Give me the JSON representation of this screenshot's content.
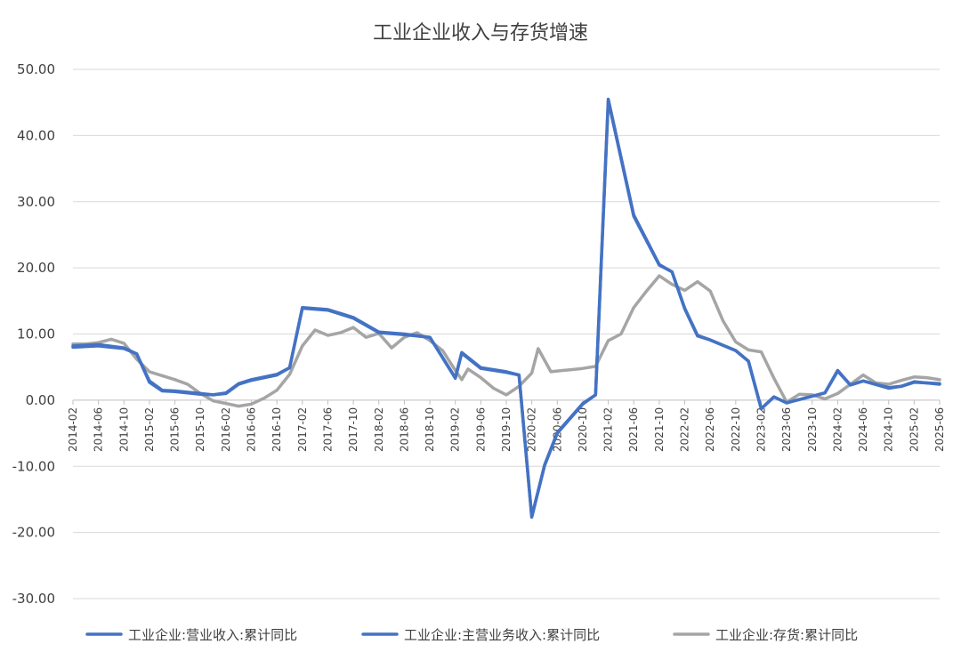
{
  "chart_data": {
    "type": "line",
    "title": "工业企业收入与存货增速",
    "xlabel": "",
    "ylabel": "",
    "ylim": [
      -30,
      50
    ],
    "yticks": [
      "50.00",
      "40.00",
      "30.00",
      "20.00",
      "10.00",
      "0.00",
      "-10.00",
      "-20.00",
      "-30.00"
    ],
    "grid": true,
    "legend_position": "bottom",
    "xtick_labels": [
      "2014-02",
      "2014-06",
      "2014-10",
      "2015-02",
      "2015-06",
      "2015-10",
      "2016-02",
      "2016-06",
      "2016-10",
      "2017-02",
      "2017-06",
      "2017-10",
      "2018-02",
      "2018-06",
      "2018-10",
      "2019-02",
      "2019-06",
      "2019-10",
      "2020-02",
      "2020-06",
      "2020-10",
      "2021-02",
      "2021-06",
      "2021-10",
      "2022-02",
      "2022-06",
      "2022-10",
      "2023-02",
      "2023-06",
      "2023-10",
      "2024-02",
      "2024-06",
      "2024-10",
      "2025-02",
      "2025-06"
    ],
    "series": [
      {
        "name": "工业企业:营业收入:累计同比",
        "color": "#4472c4",
        "points": [
          [
            "2014-02",
            8.0
          ],
          [
            "2014-06",
            8.2
          ],
          [
            "2014-10",
            7.8
          ],
          [
            "2014-12",
            7.0
          ],
          [
            "2015-02",
            2.7
          ],
          [
            "2015-04",
            1.4
          ],
          [
            "2015-06",
            1.3
          ],
          [
            "2015-10",
            0.9
          ],
          [
            "2015-12",
            0.8
          ],
          [
            "2016-02",
            1.0
          ],
          [
            "2016-04",
            2.4
          ],
          [
            "2016-06",
            3.0
          ],
          [
            "2016-10",
            3.8
          ],
          [
            "2016-12",
            4.9
          ],
          [
            "2017-02",
            13.9
          ],
          [
            "2017-06",
            13.6
          ],
          [
            "2017-10",
            12.4
          ],
          [
            "2018-02",
            10.2
          ],
          [
            "2018-06",
            9.9
          ],
          [
            "2018-10",
            9.5
          ],
          [
            "2019-02",
            3.3
          ],
          [
            "2019-03",
            7.1
          ],
          [
            "2019-06",
            4.8
          ],
          [
            "2019-10",
            4.2
          ],
          [
            "2019-12",
            3.8
          ],
          [
            "2020-02",
            -17.7
          ],
          [
            "2020-04",
            -9.9
          ],
          [
            "2020-06",
            -5.0
          ],
          [
            "2020-10",
            -0.6
          ],
          [
            "2020-12",
            0.8
          ],
          [
            "2021-02",
            45.5
          ],
          [
            "2021-06",
            28.0
          ],
          [
            "2021-10",
            20.5
          ],
          [
            "2021-12",
            19.4
          ],
          [
            "2022-02",
            13.9
          ],
          [
            "2022-04",
            9.8
          ],
          [
            "2022-06",
            9.1
          ],
          [
            "2022-10",
            7.5
          ],
          [
            "2022-12",
            5.9
          ],
          [
            "2023-02",
            -1.3
          ],
          [
            "2023-04",
            0.5
          ],
          [
            "2023-06",
            -0.4
          ],
          [
            "2023-10",
            0.6
          ],
          [
            "2023-12",
            1.1
          ],
          [
            "2024-02",
            4.5
          ],
          [
            "2024-04",
            2.3
          ],
          [
            "2024-06",
            2.9
          ],
          [
            "2024-10",
            1.8
          ],
          [
            "2024-12",
            2.1
          ],
          [
            "2025-02",
            2.8
          ],
          [
            "2025-06",
            2.4
          ]
        ]
      },
      {
        "name": "工业企业:主营业务收入:累计同比",
        "color": "#4472c4",
        "points": [
          [
            "2014-02",
            8.2
          ],
          [
            "2014-06",
            8.4
          ],
          [
            "2014-10",
            7.9
          ],
          [
            "2014-12",
            7.0
          ],
          [
            "2015-02",
            2.9
          ],
          [
            "2015-04",
            1.5
          ],
          [
            "2015-06",
            1.4
          ],
          [
            "2015-10",
            1.0
          ],
          [
            "2015-12",
            0.8
          ],
          [
            "2016-02",
            1.1
          ],
          [
            "2016-04",
            2.5
          ],
          [
            "2016-06",
            3.1
          ],
          [
            "2016-10",
            3.9
          ],
          [
            "2016-12",
            4.9
          ],
          [
            "2017-02",
            14.0
          ],
          [
            "2017-06",
            13.7
          ],
          [
            "2017-10",
            12.5
          ],
          [
            "2018-02",
            10.3
          ],
          [
            "2018-06",
            10.0
          ],
          [
            "2018-10",
            9.5
          ],
          [
            "2019-02",
            3.4
          ],
          [
            "2019-03",
            7.2
          ],
          [
            "2019-06",
            4.9
          ],
          [
            "2019-10",
            4.3
          ],
          [
            "2019-12",
            3.8
          ],
          [
            "2020-02",
            -17.6
          ],
          [
            "2020-04",
            -9.8
          ],
          [
            "2020-06",
            -4.9
          ],
          [
            "2020-10",
            -0.5
          ],
          [
            "2020-12",
            0.8
          ],
          [
            "2021-02",
            45.3
          ],
          [
            "2021-06",
            27.8
          ],
          [
            "2021-10",
            20.4
          ],
          [
            "2021-12",
            19.4
          ],
          [
            "2022-02",
            13.8
          ],
          [
            "2022-04",
            9.7
          ],
          [
            "2022-06",
            9.1
          ],
          [
            "2022-10",
            7.5
          ],
          [
            "2022-12",
            5.9
          ],
          [
            "2023-02",
            -1.3
          ],
          [
            "2023-04",
            0.5
          ],
          [
            "2023-06",
            -0.4
          ],
          [
            "2023-10",
            0.6
          ],
          [
            "2023-12",
            1.1
          ],
          [
            "2024-02",
            4.4
          ],
          [
            "2024-04",
            2.3
          ],
          [
            "2024-06",
            2.9
          ],
          [
            "2024-10",
            1.9
          ],
          [
            "2024-12",
            2.1
          ],
          [
            "2025-02",
            2.7
          ],
          [
            "2025-06",
            2.5
          ]
        ]
      },
      {
        "name": "工业企业:存货:累计同比",
        "color": "#a5a5a5",
        "points": [
          [
            "2014-02",
            8.5
          ],
          [
            "2014-04",
            8.5
          ],
          [
            "2014-06",
            8.7
          ],
          [
            "2014-08",
            9.2
          ],
          [
            "2014-10",
            8.6
          ],
          [
            "2014-12",
            6.2
          ],
          [
            "2015-02",
            4.3
          ],
          [
            "2015-06",
            3.1
          ],
          [
            "2015-08",
            2.4
          ],
          [
            "2015-10",
            1.0
          ],
          [
            "2015-12",
            -0.1
          ],
          [
            "2016-02",
            -0.5
          ],
          [
            "2016-04",
            -0.9
          ],
          [
            "2016-06",
            -0.6
          ],
          [
            "2016-08",
            0.3
          ],
          [
            "2016-10",
            1.5
          ],
          [
            "2016-12",
            3.9
          ],
          [
            "2017-02",
            8.2
          ],
          [
            "2017-04",
            10.6
          ],
          [
            "2017-06",
            9.8
          ],
          [
            "2017-08",
            10.2
          ],
          [
            "2017-10",
            11.0
          ],
          [
            "2017-12",
            9.5
          ],
          [
            "2018-02",
            10.1
          ],
          [
            "2018-04",
            7.9
          ],
          [
            "2018-06",
            9.5
          ],
          [
            "2018-08",
            10.2
          ],
          [
            "2018-10",
            9.0
          ],
          [
            "2018-12",
            7.5
          ],
          [
            "2019-02",
            4.5
          ],
          [
            "2019-03",
            3.1
          ],
          [
            "2019-04",
            4.7
          ],
          [
            "2019-06",
            3.4
          ],
          [
            "2019-08",
            1.8
          ],
          [
            "2019-10",
            0.8
          ],
          [
            "2019-12",
            2.1
          ],
          [
            "2020-02",
            4.1
          ],
          [
            "2020-03",
            7.8
          ],
          [
            "2020-05",
            4.3
          ],
          [
            "2020-08",
            4.6
          ],
          [
            "2020-10",
            4.8
          ],
          [
            "2020-12",
            5.1
          ],
          [
            "2021-02",
            9.0
          ],
          [
            "2021-04",
            10.0
          ],
          [
            "2021-06",
            14.0
          ],
          [
            "2021-08",
            16.5
          ],
          [
            "2021-10",
            18.8
          ],
          [
            "2021-12",
            17.5
          ],
          [
            "2022-02",
            16.6
          ],
          [
            "2022-04",
            17.9
          ],
          [
            "2022-06",
            16.5
          ],
          [
            "2022-08",
            12.0
          ],
          [
            "2022-10",
            8.8
          ],
          [
            "2022-12",
            7.6
          ],
          [
            "2023-02",
            7.3
          ],
          [
            "2023-04",
            3.3
          ],
          [
            "2023-06",
            -0.3
          ],
          [
            "2023-08",
            0.9
          ],
          [
            "2023-10",
            0.8
          ],
          [
            "2023-12",
            0.2
          ],
          [
            "2024-02",
            1.0
          ],
          [
            "2024-06",
            3.8
          ],
          [
            "2024-08",
            2.6
          ],
          [
            "2024-10",
            2.4
          ],
          [
            "2024-12",
            3.0
          ],
          [
            "2025-02",
            3.5
          ],
          [
            "2025-04",
            3.4
          ],
          [
            "2025-06",
            3.1
          ]
        ]
      }
    ]
  }
}
